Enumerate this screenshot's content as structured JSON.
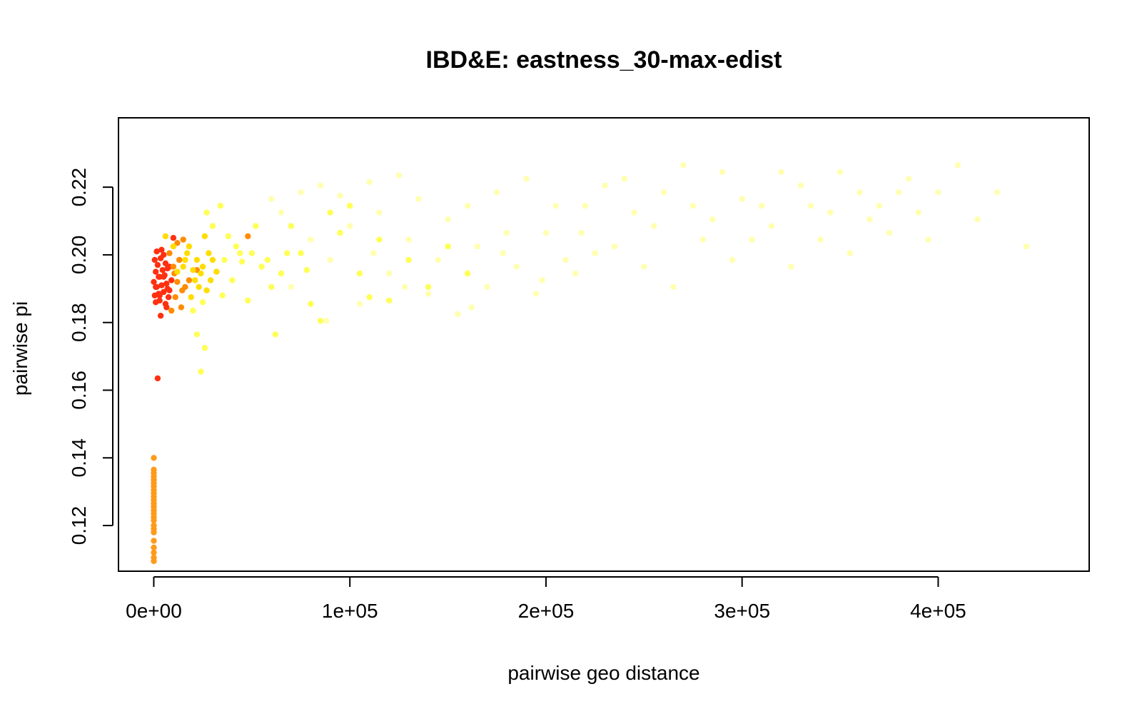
{
  "chart_data": {
    "type": "scatter",
    "title": "IBD&E: eastness_30-max-edist",
    "xlabel": "pairwise geo distance",
    "ylabel": "pairwise pi",
    "xlim": [
      -18000,
      477000
    ],
    "ylim": [
      0.1065,
      0.2405
    ],
    "x_ticks": [
      {
        "value": 0,
        "label": "0e+00"
      },
      {
        "value": 100000,
        "label": "1e+05"
      },
      {
        "value": 200000,
        "label": "2e+05"
      },
      {
        "value": 300000,
        "label": "3e+05"
      },
      {
        "value": 400000,
        "label": "4e+05"
      }
    ],
    "y_ticks": [
      {
        "value": 0.12,
        "label": "0.12"
      },
      {
        "value": 0.14,
        "label": "0.14"
      },
      {
        "value": 0.16,
        "label": "0.16"
      },
      {
        "value": 0.18,
        "label": "0.18"
      },
      {
        "value": 0.2,
        "label": "0.20"
      },
      {
        "value": 0.22,
        "label": "0.22"
      }
    ],
    "grid": false,
    "legend": "none",
    "color_gradient": [
      "#e41a1c",
      "#ff6a00",
      "#ffa500",
      "#ffd700",
      "#ffff00",
      "#ffffcc"
    ],
    "series": [
      {
        "color": "#ff9a1a",
        "points": [
          [
            0,
            0.1095
          ],
          [
            0,
            0.1105
          ],
          [
            0,
            0.112
          ],
          [
            0,
            0.1135
          ],
          [
            0,
            0.1155
          ],
          [
            0,
            0.118
          ],
          [
            0,
            0.119
          ],
          [
            0,
            0.12
          ],
          [
            0,
            0.1215
          ],
          [
            0,
            0.1225
          ],
          [
            0,
            0.1235
          ],
          [
            0,
            0.1245
          ],
          [
            0,
            0.1255
          ],
          [
            0,
            0.1265
          ],
          [
            0,
            0.1275
          ],
          [
            0,
            0.1285
          ],
          [
            0,
            0.1295
          ],
          [
            0,
            0.1305
          ],
          [
            0,
            0.1315
          ],
          [
            0,
            0.1325
          ],
          [
            0,
            0.1335
          ],
          [
            0,
            0.1345
          ],
          [
            0,
            0.1355
          ],
          [
            0,
            0.1365
          ],
          [
            0,
            0.14
          ]
        ]
      },
      {
        "color": "#ff3010",
        "points": [
          [
            2000,
            0.1635
          ],
          [
            3500,
            0.182
          ],
          [
            1000,
            0.186
          ],
          [
            3000,
            0.1865
          ],
          [
            6000,
            0.1855
          ],
          [
            500,
            0.188
          ],
          [
            2500,
            0.1885
          ],
          [
            5000,
            0.189
          ],
          [
            7500,
            0.1875
          ],
          [
            1500,
            0.1905
          ],
          [
            4000,
            0.191
          ],
          [
            6500,
            0.1915
          ],
          [
            0,
            0.192
          ],
          [
            3000,
            0.1935
          ],
          [
            5500,
            0.194
          ],
          [
            1000,
            0.195
          ],
          [
            4500,
            0.1955
          ],
          [
            7000,
            0.196
          ],
          [
            2000,
            0.197
          ],
          [
            6000,
            0.1975
          ],
          [
            500,
            0.1985
          ],
          [
            3500,
            0.199
          ],
          [
            5000,
            0.2
          ],
          [
            1500,
            0.201
          ],
          [
            4000,
            0.2015
          ],
          [
            10000,
            0.205
          ],
          [
            8000,
            0.1895
          ],
          [
            9000,
            0.1925
          ],
          [
            6500,
            0.1845
          ],
          [
            2500,
            0.1935
          ],
          [
            8000,
            0.1965
          ],
          [
            1000,
            0.1905
          ],
          [
            3000,
            0.188
          ],
          [
            5000,
            0.1935
          ],
          [
            7000,
            0.19
          ]
        ]
      },
      {
        "color": "#ff8c00",
        "points": [
          [
            9000,
            0.1835
          ],
          [
            11000,
            0.1875
          ],
          [
            14000,
            0.1845
          ],
          [
            12000,
            0.192
          ],
          [
            16000,
            0.1905
          ],
          [
            10000,
            0.1965
          ],
          [
            13000,
            0.1985
          ],
          [
            8000,
            0.2005
          ],
          [
            15000,
            0.2045
          ],
          [
            12000,
            0.2035
          ],
          [
            48000,
            0.2055
          ],
          [
            22000,
            0.1955
          ],
          [
            18000,
            0.1925
          ],
          [
            10500,
            0.1945
          ],
          [
            14500,
            0.1895
          ]
        ]
      },
      {
        "color": "#ffdd00",
        "points": [
          [
            6000,
            0.2055
          ],
          [
            10000,
            0.2025
          ],
          [
            17000,
            0.2005
          ],
          [
            22000,
            0.1985
          ],
          [
            25000,
            0.1965
          ],
          [
            28000,
            0.2005
          ],
          [
            20000,
            0.1955
          ],
          [
            24000,
            0.1945
          ],
          [
            15000,
            0.1965
          ],
          [
            30000,
            0.1985
          ],
          [
            18000,
            0.2025
          ],
          [
            26000,
            0.2055
          ],
          [
            21000,
            0.1925
          ],
          [
            23000,
            0.1905
          ],
          [
            19000,
            0.1875
          ],
          [
            27000,
            0.1895
          ],
          [
            32000,
            0.195
          ],
          [
            16000,
            0.1985
          ],
          [
            12000,
            0.195
          ],
          [
            29000,
            0.1925
          ]
        ]
      },
      {
        "color": "#ffff55",
        "points": [
          [
            20000,
            0.1835
          ],
          [
            25000,
            0.186
          ],
          [
            35000,
            0.188
          ],
          [
            40000,
            0.1925
          ],
          [
            45000,
            0.198
          ],
          [
            50000,
            0.2005
          ],
          [
            38000,
            0.2055
          ],
          [
            30000,
            0.2085
          ],
          [
            27000,
            0.2125
          ],
          [
            42000,
            0.2025
          ],
          [
            55000,
            0.1965
          ],
          [
            60000,
            0.1905
          ],
          [
            65000,
            0.1945
          ],
          [
            22000,
            0.1765
          ],
          [
            26000,
            0.1725
          ],
          [
            75000,
            0.2005
          ],
          [
            80000,
            0.1855
          ],
          [
            90000,
            0.2125
          ],
          [
            85000,
            0.1805
          ],
          [
            95000,
            0.2065
          ],
          [
            105000,
            0.1945
          ],
          [
            115000,
            0.2045
          ],
          [
            120000,
            0.1865
          ],
          [
            130000,
            0.1985
          ],
          [
            140000,
            0.1905
          ],
          [
            100000,
            0.2145
          ],
          [
            110000,
            0.1875
          ],
          [
            34000,
            0.2145
          ],
          [
            48000,
            0.1865
          ],
          [
            70000,
            0.2085
          ],
          [
            150000,
            0.2025
          ],
          [
            160000,
            0.1945
          ],
          [
            62000,
            0.1765
          ],
          [
            24000,
            0.1655
          ],
          [
            36000,
            0.1985
          ],
          [
            44000,
            0.2005
          ],
          [
            52000,
            0.2085
          ],
          [
            58000,
            0.1985
          ],
          [
            68000,
            0.2005
          ],
          [
            78000,
            0.1955
          ]
        ]
      },
      {
        "color": "#ffffb0",
        "points": [
          [
            60000,
            0.2165
          ],
          [
            75000,
            0.2185
          ],
          [
            85000,
            0.2205
          ],
          [
            95000,
            0.2175
          ],
          [
            110000,
            0.2215
          ],
          [
            125000,
            0.2235
          ],
          [
            135000,
            0.2165
          ],
          [
            150000,
            0.2105
          ],
          [
            165000,
            0.2025
          ],
          [
            175000,
            0.2185
          ],
          [
            190000,
            0.2225
          ],
          [
            200000,
            0.2065
          ],
          [
            210000,
            0.1985
          ],
          [
            220000,
            0.2145
          ],
          [
            230000,
            0.2205
          ],
          [
            245000,
            0.2125
          ],
          [
            260000,
            0.2185
          ],
          [
            270000,
            0.2265
          ],
          [
            285000,
            0.2105
          ],
          [
            300000,
            0.2165
          ],
          [
            315000,
            0.2085
          ],
          [
            330000,
            0.2205
          ],
          [
            345000,
            0.2125
          ],
          [
            360000,
            0.2185
          ],
          [
            375000,
            0.2065
          ],
          [
            390000,
            0.2125
          ],
          [
            410000,
            0.2265
          ],
          [
            420000,
            0.2105
          ],
          [
            430000,
            0.2185
          ],
          [
            445000,
            0.2025
          ],
          [
            70000,
            0.1905
          ],
          [
            90000,
            0.1985
          ],
          [
            105000,
            0.1855
          ],
          [
            120000,
            0.1945
          ],
          [
            140000,
            0.1885
          ],
          [
            155000,
            0.1825
          ],
          [
            170000,
            0.1905
          ],
          [
            185000,
            0.1965
          ],
          [
            195000,
            0.1885
          ],
          [
            215000,
            0.1945
          ],
          [
            235000,
            0.2025
          ],
          [
            250000,
            0.1965
          ],
          [
            265000,
            0.1905
          ],
          [
            280000,
            0.2045
          ],
          [
            295000,
            0.1985
          ],
          [
            310000,
            0.2145
          ],
          [
            325000,
            0.1965
          ],
          [
            340000,
            0.2045
          ],
          [
            355000,
            0.2005
          ],
          [
            370000,
            0.2145
          ],
          [
            385000,
            0.2225
          ],
          [
            400000,
            0.2185
          ],
          [
            80000,
            0.2045
          ],
          [
            100000,
            0.2085
          ],
          [
            115000,
            0.2125
          ],
          [
            130000,
            0.2045
          ],
          [
            145000,
            0.1985
          ],
          [
            160000,
            0.2145
          ],
          [
            180000,
            0.2065
          ],
          [
            205000,
            0.2145
          ],
          [
            225000,
            0.2005
          ],
          [
            240000,
            0.2225
          ],
          [
            255000,
            0.2085
          ],
          [
            275000,
            0.2145
          ],
          [
            290000,
            0.2245
          ],
          [
            305000,
            0.2045
          ],
          [
            320000,
            0.2245
          ],
          [
            335000,
            0.2145
          ],
          [
            350000,
            0.2245
          ],
          [
            365000,
            0.2105
          ],
          [
            380000,
            0.2185
          ],
          [
            395000,
            0.2045
          ],
          [
            65000,
            0.2125
          ],
          [
            88000,
            0.1805
          ],
          [
            112000,
            0.2005
          ],
          [
            128000,
            0.1905
          ],
          [
            162000,
            0.1845
          ],
          [
            178000,
            0.2005
          ],
          [
            198000,
            0.1925
          ],
          [
            218000,
            0.2065
          ]
        ]
      }
    ]
  }
}
